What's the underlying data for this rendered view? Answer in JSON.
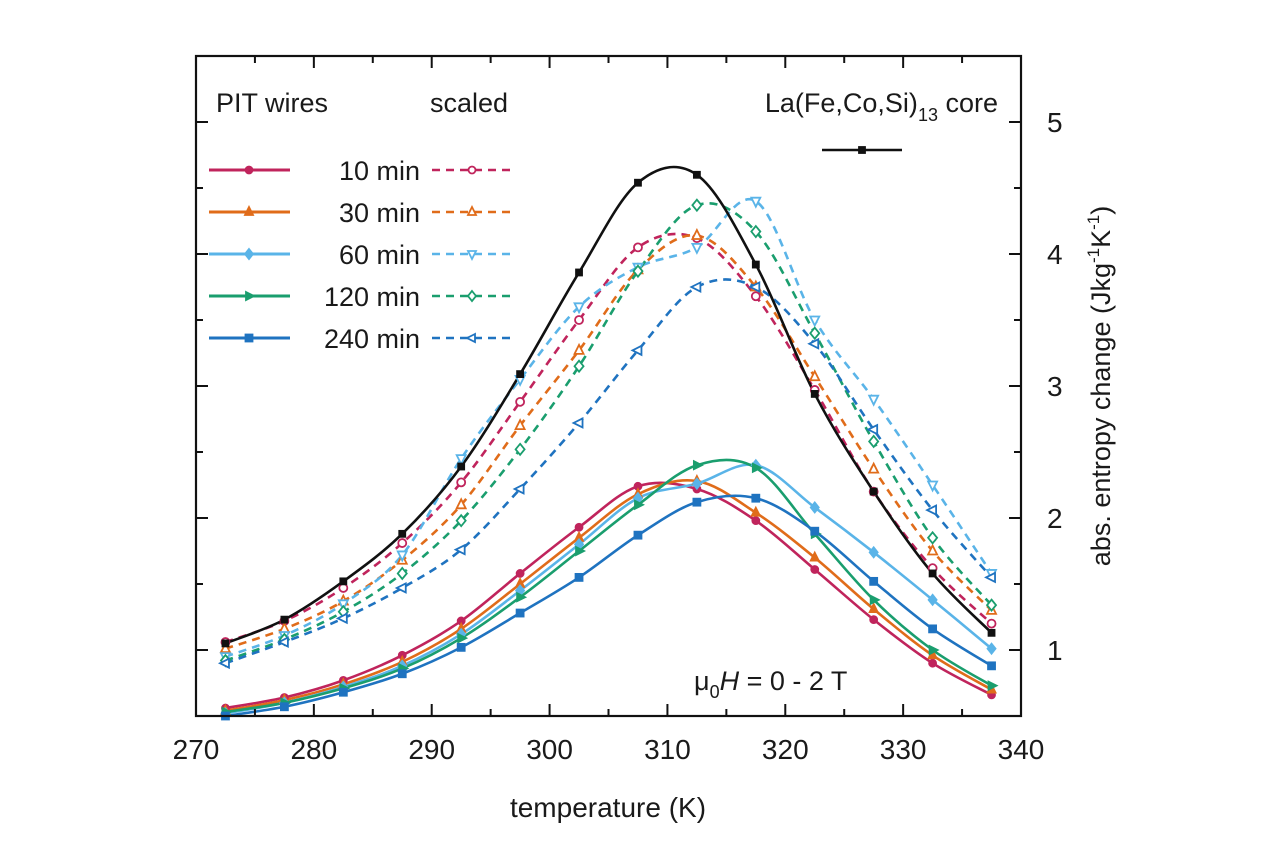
{
  "chart_data": {
    "type": "line",
    "title": "",
    "xlabel": "temperature (K)",
    "ylabel": "abs. entropy change (Jkg⁻¹K⁻¹)",
    "ylabel_parts": {
      "main": "abs. entropy change (Jkg",
      "sup1": "-1",
      "mid": "K",
      "sup2": "-1",
      "end": ")"
    },
    "xlim": [
      270,
      340
    ],
    "ylim": [
      0.5,
      5.5
    ],
    "x_ticks": [
      270,
      280,
      290,
      300,
      310,
      320,
      330,
      340
    ],
    "y_ticks": [
      1,
      2,
      3,
      4,
      5
    ],
    "y_axis_side": "right",
    "grid": false,
    "annotations": {
      "field": {
        "mu": "μ",
        "sub": "0",
        "H": "H",
        "rest": " = 0 - 2 T"
      }
    },
    "legend": {
      "placement": "top-left",
      "header_wires": "PIT wires",
      "header_scaled": "scaled",
      "core_label_main": "La(Fe,Co,Si)",
      "core_label_sub": "13",
      "core_label_end": " core",
      "entries": [
        "10 min",
        "30 min",
        "60 min",
        "120 min",
        "240 min"
      ]
    },
    "x": [
      272.5,
      277.5,
      282.5,
      287.5,
      292.5,
      297.5,
      302.5,
      307.5,
      312.5,
      317.5,
      322.5,
      327.5,
      332.5,
      337.5
    ],
    "core": {
      "name": "La(Fe,Co,Si)13 core",
      "color": "#111111",
      "values": [
        1.05,
        1.23,
        1.52,
        1.88,
        2.39,
        3.09,
        3.86,
        4.54,
        4.6,
        3.92,
        2.94,
        2.2,
        1.58,
        1.13
      ]
    },
    "series": [
      {
        "name": "10 min",
        "color": "#c0245c",
        "marker": "circle",
        "values": [
          0.56,
          0.64,
          0.77,
          0.96,
          1.22,
          1.58,
          1.93,
          2.24,
          2.22,
          1.98,
          1.61,
          1.23,
          0.9,
          0.66
        ],
        "scaled": [
          1.06,
          1.22,
          1.47,
          1.81,
          2.27,
          2.88,
          3.5,
          4.05,
          4.12,
          3.68,
          2.97,
          2.2,
          1.62,
          1.2
        ]
      },
      {
        "name": "30 min",
        "color": "#e06c1a",
        "marker": "triangle-up",
        "values": [
          0.54,
          0.62,
          0.74,
          0.91,
          1.16,
          1.5,
          1.85,
          2.18,
          2.28,
          2.04,
          1.7,
          1.31,
          0.96,
          0.7
        ],
        "scaled": [
          1.01,
          1.16,
          1.37,
          1.68,
          2.1,
          2.7,
          3.27,
          3.88,
          4.14,
          3.75,
          3.07,
          2.37,
          1.75,
          1.3
        ]
      },
      {
        "name": "60 min",
        "color": "#5ab4e8",
        "marker": "diamond",
        "values": [
          0.52,
          0.6,
          0.72,
          0.88,
          1.12,
          1.45,
          1.8,
          2.15,
          2.26,
          2.4,
          2.08,
          1.74,
          1.38,
          1.01
        ],
        "scaled": [
          0.95,
          1.11,
          1.35,
          1.72,
          2.45,
          3.05,
          3.6,
          3.9,
          4.05,
          4.4,
          3.5,
          2.9,
          2.25,
          1.58
        ]
      },
      {
        "name": "120 min",
        "color": "#1a9e6e",
        "marker": "triangle-right",
        "values": [
          0.53,
          0.6,
          0.71,
          0.86,
          1.09,
          1.4,
          1.75,
          2.1,
          2.4,
          2.38,
          1.88,
          1.38,
          1.0,
          0.73
        ],
        "scaled": [
          0.92,
          1.08,
          1.29,
          1.58,
          1.98,
          2.52,
          3.15,
          3.87,
          4.37,
          4.17,
          3.4,
          2.58,
          1.85,
          1.34
        ]
      },
      {
        "name": "240 min",
        "color": "#1f73c0",
        "marker": "square",
        "values": [
          0.5,
          0.57,
          0.68,
          0.82,
          1.02,
          1.28,
          1.55,
          1.87,
          2.12,
          2.15,
          1.9,
          1.52,
          1.16,
          0.88
        ],
        "scaled": [
          0.9,
          1.06,
          1.24,
          1.47,
          1.76,
          2.22,
          2.72,
          3.27,
          3.75,
          3.75,
          3.32,
          2.67,
          2.06,
          1.55
        ]
      }
    ]
  }
}
